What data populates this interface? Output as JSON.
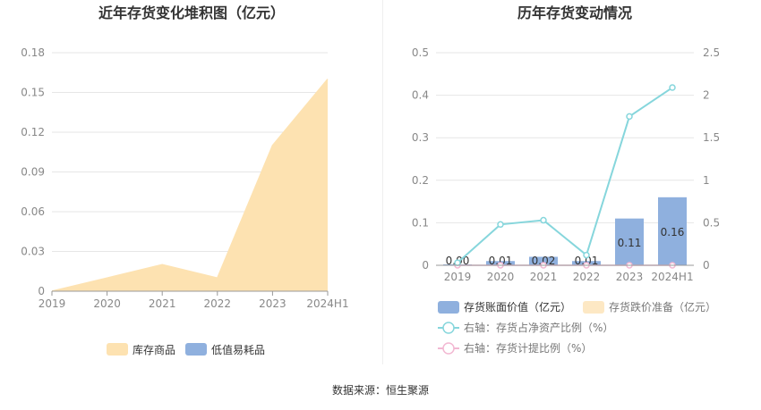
{
  "source_text": "数据来源：恒生聚源",
  "colors": {
    "goods": "#fde2b1",
    "consumables": "#8fb0de",
    "bar": "#8fb0de",
    "provision": "#fde8c4",
    "ratio_line": "#86d6dc",
    "provision_ratio_line": "#f2b8d2",
    "axis_text": "#888888",
    "grid": "#e6e6e6"
  },
  "chart_data": [
    {
      "type": "area",
      "title": "近年存货变化堆积图（亿元）",
      "categories": [
        "2019",
        "2020",
        "2021",
        "2022",
        "2023",
        "2024H1"
      ],
      "series": [
        {
          "name": "库存商品",
          "values": [
            0.0,
            0.01,
            0.02,
            0.01,
            0.11,
            0.16
          ]
        },
        {
          "name": "低值易耗品",
          "values": [
            0,
            0,
            0,
            0,
            0,
            0
          ]
        }
      ],
      "y_ticks": [
        "0",
        "0.03",
        "0.06",
        "0.09",
        "0.12",
        "0.15",
        "0.18"
      ],
      "ylim": [
        0,
        0.18
      ],
      "legend_position": "bottom",
      "grid": true
    },
    {
      "type": "bar",
      "title": "历年存货变动情况",
      "categories": [
        "2019",
        "2020",
        "2021",
        "2022",
        "2023",
        "2024H1"
      ],
      "series": [
        {
          "name": "存货账面价值（亿元）",
          "kind": "bar",
          "axis": "left",
          "values": [
            0.0,
            0.01,
            0.02,
            0.01,
            0.11,
            0.16
          ],
          "labels": [
            "0.00",
            "0.01",
            "0.02",
            "0.01",
            "0.11",
            "0.16"
          ]
        },
        {
          "name": "存货跌价准备（亿元）",
          "kind": "bar",
          "axis": "left",
          "values": [
            0,
            0,
            0,
            0,
            0,
            0
          ]
        },
        {
          "name": "右轴：存货占净资产比例（%）",
          "kind": "line",
          "axis": "right",
          "values": [
            0.03,
            0.48,
            0.53,
            0.12,
            1.75,
            2.09
          ]
        },
        {
          "name": "右轴：存货计提比例（%）",
          "kind": "line",
          "axis": "right",
          "values": [
            0,
            0,
            0,
            0,
            0,
            0
          ]
        }
      ],
      "y_left_ticks": [
        "0",
        "0.1",
        "0.2",
        "0.3",
        "0.4",
        "0.5"
      ],
      "y_right_ticks": [
        "0",
        "0.5",
        "1",
        "1.5",
        "2",
        "2.5"
      ],
      "ylim_left": [
        0,
        0.5
      ],
      "ylim_right": [
        0,
        2.5
      ],
      "legend_position": "bottom",
      "grid": true
    }
  ]
}
